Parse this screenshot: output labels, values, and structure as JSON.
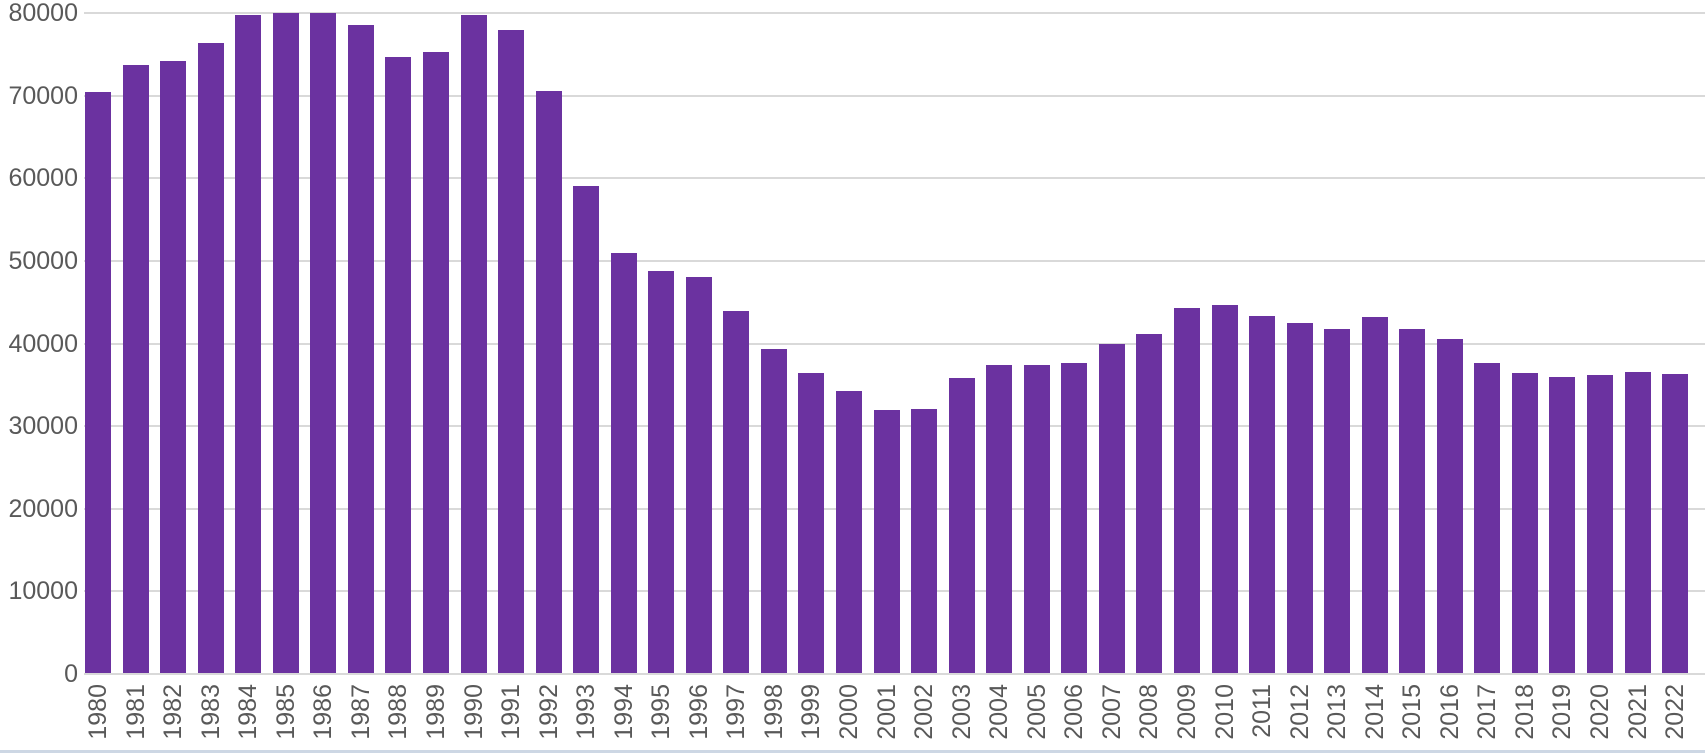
{
  "chart_data": {
    "type": "bar",
    "title": "",
    "xlabel": "",
    "ylabel": "",
    "categories": [
      "1980",
      "1981",
      "1982",
      "1983",
      "1984",
      "1985",
      "1986",
      "1987",
      "1988",
      "1989",
      "1990",
      "1991",
      "1992",
      "1993",
      "1994",
      "1995",
      "1996",
      "1997",
      "1998",
      "1999",
      "2000",
      "2001",
      "2002",
      "2003",
      "2004",
      "2005",
      "2006",
      "2007",
      "2008",
      "2009",
      "2010",
      "2011",
      "2012",
      "2013",
      "2014",
      "2015",
      "2016",
      "2017",
      "2018",
      "2019",
      "2020",
      "2021",
      "2022"
    ],
    "values": [
      70400,
      73700,
      74200,
      76400,
      79800,
      80000,
      80000,
      78500,
      74700,
      75300,
      79800,
      77900,
      70600,
      59100,
      51000,
      48800,
      48000,
      43900,
      39300,
      36400,
      34200,
      32000,
      32100,
      35800,
      37400,
      37400,
      37600,
      40000,
      41100,
      44300,
      44700,
      43300,
      42500,
      41800,
      43200,
      41800,
      40600,
      37600,
      36400,
      36000,
      36200,
      36500,
      36300
    ],
    "ylim": [
      0,
      80000
    ],
    "y_ticks": [
      "0",
      "10000",
      "20000",
      "30000",
      "40000",
      "50000",
      "60000",
      "70000",
      "80000"
    ],
    "grid": true,
    "legend": "none",
    "colors": {
      "bar": "#6B32A0",
      "gridline": "#D9D9D9",
      "axis_line": "#D9D9D9",
      "tick_label": "#595959",
      "background": "#FFFFFF",
      "bottom_edge": "#CDD7E4"
    }
  }
}
